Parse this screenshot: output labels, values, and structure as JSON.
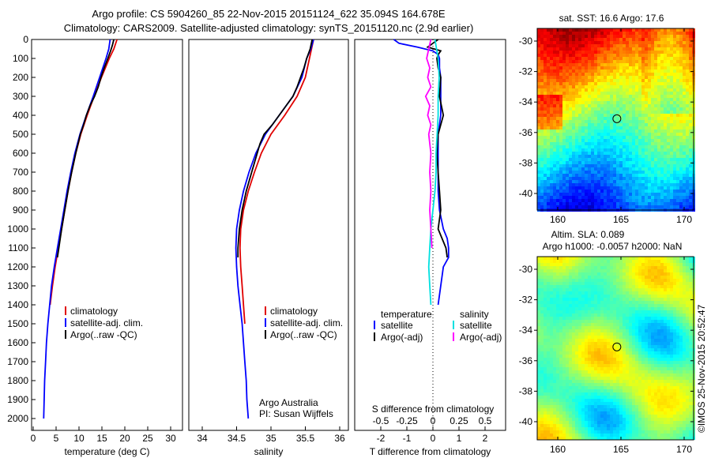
{
  "title": {
    "line1": "Argo profile: CS 5904260_85 22-Nov-2015 20151124_622 35.094S 164.678E",
    "line2": "Climatology: CARS2009. Satellite-adjusted climatology: synTS_20151120.nc (2.9d earlier)"
  },
  "copyright": "©IMOS 25-Nov-2015 20:52:47",
  "colors": {
    "climatology": "#e00000",
    "satellite": "#0000ff",
    "argo": "#000000",
    "sal_satellite": "#00e0e0",
    "sal_argo": "#ff00ff"
  },
  "chart_data": [
    {
      "type": "line",
      "name": "temperature",
      "xlabel": "temperature (deg C)",
      "ylabel": "depth",
      "xlim": [
        -0.5,
        31.5
      ],
      "ylim": [
        2100,
        0
      ],
      "xticks": [
        "0",
        "5",
        "10",
        "15",
        "20",
        "25",
        "30"
      ],
      "yticks": [
        "0",
        "100",
        "200",
        "300",
        "400",
        "500",
        "600",
        "700",
        "800",
        "900",
        "1000",
        "1100",
        "1200",
        "1300",
        "1400",
        "1500",
        "1600",
        "1700",
        "1800",
        "1900",
        "2000"
      ],
      "legend": [
        "climatology",
        "satellite-adj. clim.",
        "Argo(..raw -QC)"
      ],
      "series": [
        {
          "name": "climatology",
          "depth": [
            0,
            50,
            100,
            200,
            300,
            400,
            500,
            600,
            700,
            800,
            900,
            1000,
            1100,
            1200,
            1300,
            1400
          ],
          "values": [
            18.3,
            17.6,
            16.6,
            14.9,
            13.3,
            11.8,
            10.4,
            9.3,
            8.4,
            7.6,
            6.9,
            6.2,
            5.5,
            4.8,
            4.2,
            3.7
          ]
        },
        {
          "name": "satellite-adj. clim.",
          "depth": [
            0,
            50,
            100,
            200,
            300,
            400,
            500,
            600,
            700,
            800,
            900,
            1000,
            1100,
            1200,
            1300,
            1400,
            1500,
            1600,
            1700,
            1800,
            1900,
            2000
          ],
          "values": [
            16.8,
            16.5,
            15.9,
            14.5,
            13.1,
            11.6,
            10.2,
            9.1,
            8.2,
            7.4,
            6.7,
            6.0,
            5.3,
            4.6,
            4.0,
            3.6,
            3.2,
            2.9,
            2.7,
            2.5,
            2.4,
            2.3
          ]
        },
        {
          "name": "Argo(..raw -QC)",
          "depth": [
            0,
            30,
            60,
            100,
            150,
            200,
            250,
            300,
            350,
            400,
            450,
            500,
            600,
            700,
            800,
            900,
            1000,
            1100,
            1150
          ],
          "values": [
            17.6,
            17.3,
            16.9,
            16.3,
            15.5,
            14.8,
            14.2,
            13.4,
            12.4,
            11.6,
            11.0,
            10.3,
            9.3,
            8.4,
            7.6,
            6.9,
            6.2,
            5.6,
            5.3
          ]
        }
      ]
    },
    {
      "type": "line",
      "name": "salinity",
      "xlabel": "salinity",
      "xlim": [
        33.8,
        36.2
      ],
      "ylim": [
        2100,
        0
      ],
      "xticks": [
        "34",
        "34.5",
        "35",
        "35.5",
        "36"
      ],
      "legend": [
        "climatology",
        "satellite-adj. clim.",
        "Argo(..raw -QC)"
      ],
      "annotation": [
        "Argo Australia",
        "PI: Susan Wijffels"
      ],
      "series": [
        {
          "name": "climatology",
          "depth": [
            0,
            100,
            200,
            300,
            400,
            500,
            600,
            700,
            800,
            900,
            1000,
            1100,
            1200,
            1300,
            1400,
            1500
          ],
          "values": [
            35.62,
            35.56,
            35.5,
            35.38,
            35.2,
            35.0,
            34.86,
            34.76,
            34.67,
            34.6,
            34.56,
            34.55,
            34.56,
            34.58,
            34.6,
            34.62
          ]
        },
        {
          "name": "satellite-adj. clim.",
          "depth": [
            0,
            50,
            100,
            200,
            300,
            400,
            500,
            600,
            700,
            800,
            900,
            1000,
            1100,
            1200,
            1300,
            1400,
            1500,
            1600,
            1700,
            1800,
            1900,
            2000
          ],
          "values": [
            35.62,
            35.58,
            35.52,
            35.45,
            35.32,
            35.12,
            34.92,
            34.78,
            34.68,
            34.6,
            34.54,
            34.5,
            34.49,
            34.5,
            34.52,
            34.55,
            34.58,
            34.6,
            34.62,
            34.64,
            34.65,
            34.67
          ]
        },
        {
          "name": "Argo(..raw -QC)",
          "depth": [
            0,
            50,
            100,
            150,
            200,
            250,
            300,
            350,
            400,
            450,
            500,
            550,
            600,
            700,
            800,
            900,
            1000,
            1100,
            1150
          ],
          "values": [
            35.6,
            35.57,
            35.52,
            35.48,
            35.43,
            35.38,
            35.32,
            35.22,
            35.12,
            35.02,
            34.9,
            34.84,
            34.8,
            34.72,
            34.64,
            34.58,
            34.54,
            34.52,
            34.52
          ]
        }
      ]
    },
    {
      "type": "line",
      "name": "difference",
      "xlabel": "T difference from climatology",
      "x2label": "S difference from climatology",
      "xlim": [
        -3,
        3
      ],
      "ylim": [
        2100,
        0
      ],
      "xticks": [
        "-2",
        "-1",
        "0",
        "1",
        "2"
      ],
      "x2ticks": [
        "-0.5",
        "-0.25",
        "0",
        "0.25",
        "0.5"
      ],
      "legend_headers": [
        "temperature",
        "salinity"
      ],
      "legend": [
        "satellite",
        "Argo(-adj)",
        "satellite",
        "Argo(-adj)"
      ],
      "series": [
        {
          "name": "T satellite",
          "depth": [
            0,
            20,
            40,
            60,
            80,
            100,
            150,
            200,
            300,
            400,
            500,
            600,
            700,
            800,
            900,
            1000,
            1050,
            1100,
            1150,
            1200,
            1300,
            1400
          ],
          "values": [
            -1.5,
            -1.3,
            -0.6,
            0.0,
            0.2,
            0.25,
            0.25,
            0.3,
            0.3,
            0.3,
            0.2,
            0.2,
            0.2,
            0.2,
            0.25,
            0.4,
            0.55,
            0.6,
            0.6,
            0.4,
            0.3,
            0.2
          ]
        },
        {
          "name": "T Argo(-adj)",
          "depth": [
            0,
            20,
            40,
            60,
            80,
            100,
            150,
            200,
            300,
            400,
            500,
            600,
            700,
            800,
            900,
            1000,
            1100,
            1150
          ],
          "values": [
            0.2,
            0.0,
            -0.2,
            0.3,
            0.2,
            0.15,
            0.2,
            0.3,
            0.25,
            0.4,
            0.2,
            0.15,
            0.2,
            0.25,
            0.3,
            0.2,
            0.5,
            0.55
          ]
        },
        {
          "name": "S satellite",
          "depth": [
            0,
            100,
            200,
            300,
            400,
            500,
            600,
            700,
            800,
            900,
            1000,
            1100,
            1200,
            1300,
            1400
          ],
          "values": [
            0.02,
            0.05,
            0.06,
            0.05,
            0.05,
            0.04,
            0.03,
            0.03,
            0.02,
            0.0,
            -0.02,
            -0.03,
            -0.04,
            -0.03,
            -0.02
          ]
        },
        {
          "name": "S Argo(-adj)",
          "depth": [
            0,
            50,
            100,
            150,
            200,
            250,
            300,
            350,
            400,
            450,
            500,
            600,
            700,
            800,
            900,
            1000,
            1100
          ],
          "values": [
            -0.02,
            -0.04,
            -0.06,
            -0.03,
            -0.05,
            -0.02,
            -0.07,
            -0.03,
            -0.05,
            -0.02,
            -0.04,
            -0.02,
            -0.03,
            -0.02,
            -0.03,
            -0.02,
            -0.01
          ]
        }
      ]
    },
    {
      "type": "heatmap",
      "name": "sst-map",
      "title": "sat. SST: 16.6 Argo: 17.6",
      "xticks": [
        "160",
        "165",
        "170"
      ],
      "yticks": [
        "-30",
        "-32",
        "-34",
        "-36",
        "-38",
        "-40"
      ],
      "xlim": [
        158.4,
        171
      ],
      "ylim": [
        -41.1,
        -29.2
      ],
      "argo_position": {
        "lon": 164.678,
        "lat": -35.094
      }
    },
    {
      "type": "heatmap",
      "name": "sla-map",
      "title": "Altim. SLA: 0.089",
      "subtitle": "Argo h1000: -0.0057 h2000: NaN",
      "xticks": [
        "160",
        "165",
        "170"
      ],
      "yticks": [
        "-30",
        "-32",
        "-34",
        "-36",
        "-38",
        "-40"
      ],
      "xlim": [
        158.4,
        171
      ],
      "ylim": [
        -41.1,
        -29.2
      ],
      "argo_position": {
        "lon": 164.678,
        "lat": -35.094
      }
    }
  ]
}
